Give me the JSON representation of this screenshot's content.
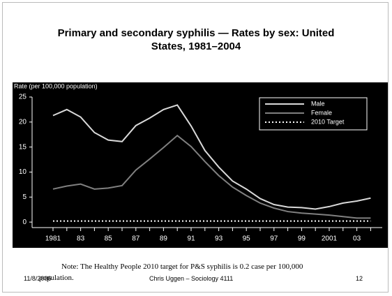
{
  "chart_data": {
    "type": "line",
    "title": "Primary and secondary syphilis — Rates by sex: United States, 1981–2004",
    "y_label": "Rate (per 100,000 population)",
    "categories": [
      "1981",
      null,
      "83",
      null,
      "85",
      null,
      "87",
      null,
      "89",
      null,
      "91",
      null,
      "93",
      null,
      "95",
      null,
      "97",
      null,
      "99",
      null,
      "2001",
      null,
      "03",
      null
    ],
    "series": [
      {
        "name": "Male",
        "color": "#d9d9d9",
        "dash": false,
        "values": [
          21.3,
          22.5,
          21.0,
          17.9,
          16.4,
          16.1,
          19.3,
          20.8,
          22.5,
          23.4,
          19.2,
          14.3,
          11.0,
          8.2,
          6.6,
          4.7,
          3.5,
          3.0,
          2.9,
          2.6,
          3.1,
          3.8,
          4.2,
          4.8
        ]
      },
      {
        "name": "Female",
        "color": "#808080",
        "dash": false,
        "values": [
          6.6,
          7.2,
          7.6,
          6.6,
          6.8,
          7.3,
          10.4,
          12.6,
          14.9,
          17.3,
          15.1,
          12.1,
          9.3,
          7.0,
          5.3,
          3.8,
          2.8,
          2.1,
          1.8,
          1.6,
          1.4,
          1.1,
          0.8,
          0.8
        ]
      },
      {
        "name": "2010 Target",
        "color": "#ffffff",
        "dash": true,
        "values": [
          0.2,
          0.2,
          0.2,
          0.2,
          0.2,
          0.2,
          0.2,
          0.2,
          0.2,
          0.2,
          0.2,
          0.2,
          0.2,
          0.2,
          0.2,
          0.2,
          0.2,
          0.2,
          0.2,
          0.2,
          0.2,
          0.2,
          0.2,
          0.2
        ]
      }
    ],
    "ylim": [
      -1.1,
      25
    ],
    "yticks": [
      0,
      5,
      10,
      15,
      20,
      25
    ],
    "grid": false,
    "legend": "upper right"
  },
  "note_lines": [
    "Note: The Healthy People 2010 target for P&S syphilis is 0.2 case per 100,000",
    "population."
  ],
  "footer": {
    "date": "11/8/2006",
    "author": "Chris Uggen – Sociology 4111",
    "page": "12"
  }
}
